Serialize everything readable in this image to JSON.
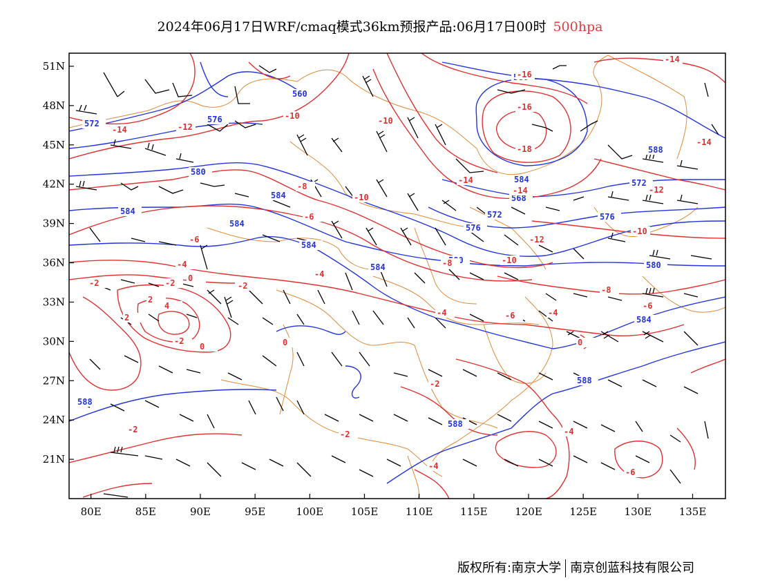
{
  "title": {
    "main": "2024年06月17日WRF/cmaq模式36km预报产品:06月17日00时",
    "level": "500hpa"
  },
  "axes": {
    "lat_labels": [
      "51N",
      "48N",
      "45N",
      "42N",
      "39N",
      "36N",
      "33N",
      "30N",
      "27N",
      "24N",
      "21N"
    ],
    "lat_values": [
      51,
      48,
      45,
      42,
      39,
      36,
      33,
      30,
      27,
      24,
      21
    ],
    "lon_labels": [
      "80E",
      "85E",
      "90E",
      "95E",
      "100E",
      "105E",
      "110E",
      "115E",
      "120E",
      "125E",
      "130E",
      "135E"
    ],
    "lon_values": [
      80,
      85,
      90,
      95,
      100,
      105,
      110,
      115,
      120,
      125,
      130,
      135
    ],
    "lon_range": [
      78,
      138
    ],
    "lat_range": [
      18,
      52
    ]
  },
  "colors": {
    "geopotential": "#2233dd",
    "temperature": "#e03030",
    "boundaries": "#e08a3a",
    "wind": "#000000"
  },
  "geopotential_labels": [
    "560",
    "572",
    "576",
    "580",
    "584",
    "584",
    "584",
    "584",
    "584",
    "588",
    "580",
    "576",
    "572",
    "588",
    "584",
    "580",
    "576",
    "572",
    "568",
    "588",
    "588",
    "584",
    "580"
  ],
  "temperature_labels": [
    "-14",
    "-12",
    "-10",
    "-10",
    "-10",
    "-8",
    "-6",
    "-6",
    "-4",
    "-2",
    "-2",
    "0",
    "2",
    "4",
    "2",
    "0",
    "-2",
    "0",
    "-2",
    "-4",
    "-14",
    "-16",
    "-16",
    "-18",
    "-14",
    "-14",
    "-12",
    "-10",
    "-12",
    "-10",
    "-8",
    "-8",
    "-6",
    "-4",
    "-6",
    "0",
    "-4",
    "-4",
    "-2",
    "-2",
    "-6",
    "-14",
    "-4",
    "-2"
  ],
  "footer": {
    "left": "版权所有:南京大学",
    "right": "南京创蓝科技有限公司"
  }
}
